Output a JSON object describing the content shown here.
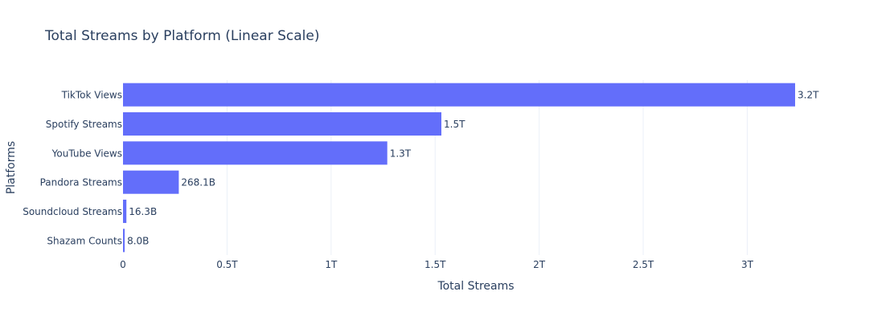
{
  "chart_data": {
    "type": "bar",
    "orientation": "horizontal",
    "title": "Total Streams by Platform (Linear Scale)",
    "xlabel": "Total Streams",
    "ylabel": "Platforms",
    "categories": [
      "TikTok Views",
      "Spotify Streams",
      "YouTube Views",
      "Pandora Streams",
      "Soundcloud Streams",
      "Shazam Counts"
    ],
    "values": [
      3230000000000,
      1530000000000,
      1270000000000,
      268100000000,
      16300000000,
      8000000000
    ],
    "data_labels": [
      "3.2T",
      "1.5T",
      "1.3T",
      "268.1B",
      "16.3B",
      "8.0B"
    ],
    "xlim": [
      0,
      3230000000000
    ],
    "x_ticks": [
      0,
      500000000000,
      1000000000000,
      1500000000000,
      2000000000000,
      2500000000000,
      3000000000000
    ],
    "x_tick_labels": [
      "0",
      "0.5T",
      "1T",
      "1.5T",
      "2T",
      "2.5T",
      "3T"
    ],
    "grid": true,
    "legend": "none",
    "colors": {
      "bar": "#636efa",
      "grid": "#ebf0f8",
      "text": "#2a3f5f",
      "background": "#ffffff"
    }
  }
}
